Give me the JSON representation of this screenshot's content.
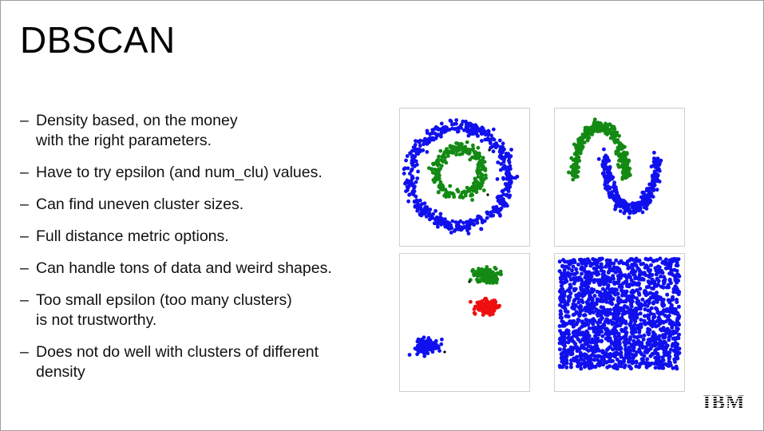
{
  "title": "DBSCAN",
  "bullets": [
    {
      "lines": [
        "Density based, on the money",
        "with the right parameters."
      ]
    },
    {
      "lines": [
        "Have to try epsilon (and num_clu) values."
      ]
    },
    {
      "lines": [
        "Can find uneven cluster sizes."
      ]
    },
    {
      "lines": [
        "Full distance metric options."
      ]
    },
    {
      "lines": [
        "Can handle tons of data and weird shapes."
      ]
    },
    {
      "lines": [
        "Too small epsilon (too many clusters)",
        "is not trustworthy."
      ]
    },
    {
      "lines": [
        "Does not do well with clusters of different",
        "density"
      ]
    }
  ],
  "bullet_marker": "–",
  "colors": {
    "blue": "#1010ee",
    "green": "#138a13",
    "red": "#ee1010",
    "noise": "#000000"
  },
  "plots": [
    {
      "name": "circles-plot",
      "pattern": "concentric-circles",
      "clusters": [
        "blue",
        "green"
      ]
    },
    {
      "name": "moons-plot",
      "pattern": "two-moons",
      "clusters": [
        "green",
        "blue"
      ]
    },
    {
      "name": "blobs-plot",
      "pattern": "three-blobs",
      "clusters": [
        "green",
        "red",
        "blue"
      ]
    },
    {
      "name": "uniform-plot",
      "pattern": "uniform-square",
      "clusters": [
        "blue"
      ]
    }
  ],
  "logo": {
    "text": "IBM"
  }
}
